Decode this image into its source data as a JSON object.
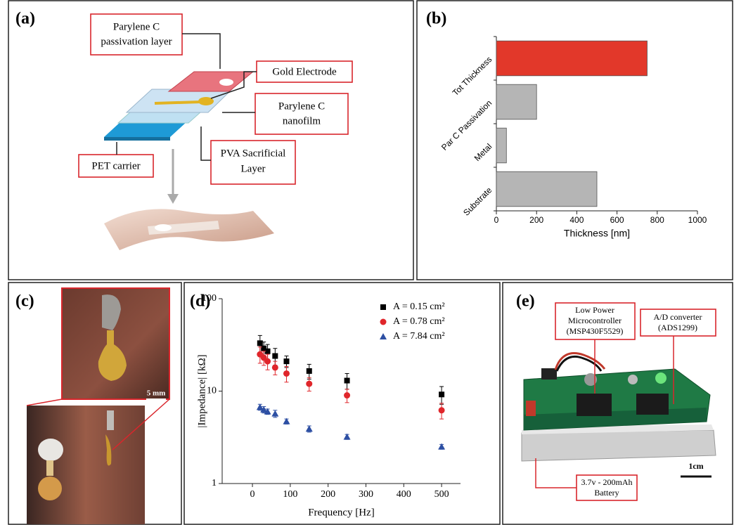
{
  "chart_data": [
    {
      "type": "bar",
      "orientation": "horizontal",
      "panel_label": "(b)",
      "categories": [
        "Tot Thickness",
        "Par C Passivation",
        "Metal",
        "Substrate"
      ],
      "values": [
        750,
        200,
        50,
        500
      ],
      "colors": [
        "#e2382a",
        "#b5b5b5",
        "#b5b5b5",
        "#b5b5b5"
      ],
      "xlim": [
        0,
        1000
      ],
      "xticks": [
        0,
        200,
        400,
        600,
        800,
        1000
      ],
      "xlabel": "Thickness [nm]"
    },
    {
      "type": "scatter",
      "panel_label": "(d)",
      "x": [
        20,
        30,
        40,
        60,
        90,
        150,
        250,
        500
      ],
      "series": [
        {
          "name": "A = 0.15 cm²",
          "color": "#000000",
          "marker": "square",
          "values": [
            33,
            29,
            27,
            24,
            21,
            16.5,
            13,
            9.2
          ],
          "errors": [
            7,
            5,
            5,
            5,
            3,
            3,
            2.5,
            2
          ]
        },
        {
          "name": "A = 0.78 cm²",
          "color": "#e0262b",
          "marker": "circle",
          "values": [
            25,
            23,
            21,
            18,
            15.5,
            12,
            9,
            6.2
          ],
          "errors": [
            5,
            4,
            4,
            3,
            3,
            2,
            1.5,
            1.2
          ]
        },
        {
          "name": "A = 7.84 cm²",
          "color": "#2d4fa3",
          "marker": "triangle",
          "values": [
            6.7,
            6.3,
            6.0,
            5.7,
            4.7,
            3.9,
            3.2,
            2.5
          ],
          "errors": [
            0.5,
            0.5,
            0.4,
            0.5,
            0.3,
            0.3,
            0.2,
            0.15
          ]
        }
      ],
      "xlim": [
        -80,
        550
      ],
      "xticks": [
        0,
        100,
        200,
        300,
        400,
        500
      ],
      "ylim": [
        1,
        100
      ],
      "yticks": [
        1,
        10,
        100
      ],
      "log_y": true,
      "xlabel": "Frequency [Hz]",
      "ylabel": "|Impedance| [kΩ]",
      "legend": "upper right"
    }
  ],
  "panel_a": {
    "label": "(a)",
    "callouts": [
      {
        "lines": [
          "Parylene C",
          "passivation layer"
        ]
      },
      {
        "lines": [
          "Gold Electrode"
        ]
      },
      {
        "lines": [
          "Parylene C",
          "nanofilm"
        ]
      },
      {
        "lines": [
          "PVA Sacrificial",
          "Layer"
        ]
      },
      {
        "lines": [
          "PET carrier"
        ]
      }
    ]
  },
  "panel_c": {
    "label": "(c)",
    "scale": "5 mm"
  },
  "panel_e": {
    "label": "(e)",
    "callouts": [
      {
        "lines": [
          "Low Power",
          "Microcontroller",
          "(MSP430F5529)"
        ]
      },
      {
        "lines": [
          "A/D converter",
          "(ADS1299)"
        ]
      },
      {
        "lines": [
          "3.7v - 200mAh",
          "Battery"
        ]
      }
    ],
    "scale": "1cm"
  }
}
